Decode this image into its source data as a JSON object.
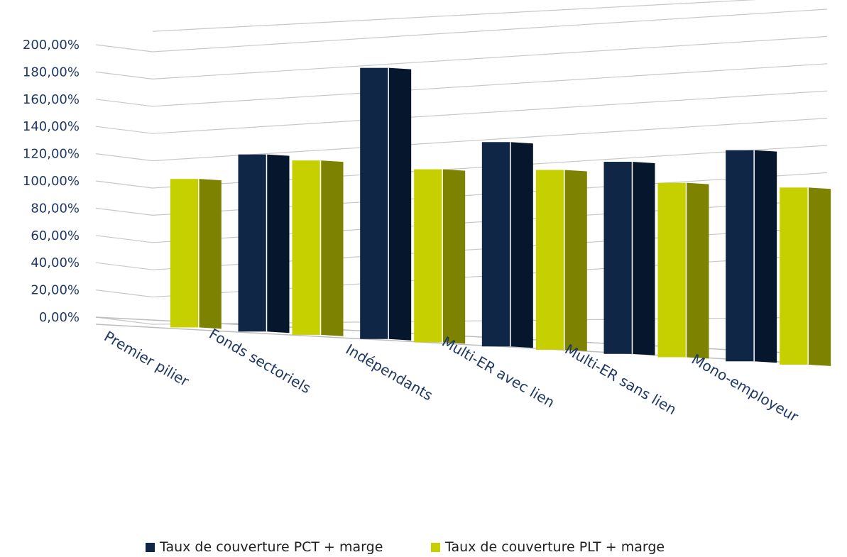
{
  "chart_data": {
    "type": "bar",
    "title": "",
    "xlabel": "",
    "ylabel": "",
    "ylim": [
      0,
      200
    ],
    "y_tick_values": [
      0,
      20,
      40,
      60,
      80,
      100,
      120,
      140,
      160,
      180,
      200
    ],
    "y_tick_labels": [
      "0,00%",
      "20,00%",
      "40,00%",
      "60,00%",
      "80,00%",
      "100,00%",
      "120,00%",
      "140,00%",
      "160,00%",
      "180,00%",
      "200,00%"
    ],
    "categories": [
      "Premier pilier",
      "Fonds sectoriels",
      "Indépendants",
      "Multi-ER avec lien",
      "Multi-ER sans lien",
      "Mono-employeur"
    ],
    "series": [
      {
        "name": "Taux de couverture PCT + marge",
        "values": [
          null,
          130,
          199,
          150,
          141,
          155
        ],
        "color": "#0f2647",
        "side_color": "#06162c"
      },
      {
        "name": "Taux de couverture PLT + marge",
        "values": [
          109,
          128,
          127,
          132,
          128,
          130
        ],
        "color": "#c6d000",
        "side_color": "#7d8300"
      }
    ],
    "grid": true,
    "legend_position": "bottom",
    "style": "3d-clustered-column"
  }
}
